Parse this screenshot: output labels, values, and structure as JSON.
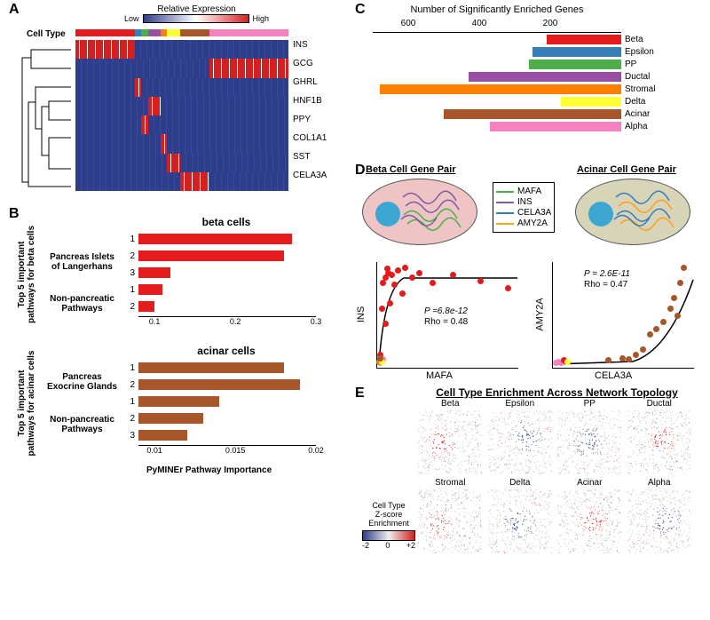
{
  "cellTypeColors": {
    "Beta": "#e41a1c",
    "Epsilon": "#377eb8",
    "PP": "#4daf4a",
    "Ductal": "#984ea3",
    "Stromal": "#ff7f00",
    "Delta": "#ffff33",
    "Acinar": "#a65628",
    "Alpha": "#f781bf"
  },
  "panelA": {
    "label": "A",
    "legendTitle": "Relative Expression",
    "legendLow": "Low",
    "legendHigh": "High",
    "cellTypeLabel": "Cell Type",
    "cellTypeBar": [
      {
        "color": "#e41a1c",
        "w": 0.28
      },
      {
        "color": "#377eb8",
        "w": 0.03
      },
      {
        "color": "#4daf4a",
        "w": 0.03
      },
      {
        "color": "#984ea3",
        "w": 0.06
      },
      {
        "color": "#ff7f00",
        "w": 0.03
      },
      {
        "color": "#ffff33",
        "w": 0.06
      },
      {
        "color": "#a65628",
        "w": 0.14
      },
      {
        "color": "#f781bf",
        "w": 0.37
      }
    ],
    "genes": [
      "INS",
      "GCG",
      "GHRL",
      "HNF1B",
      "PPY",
      "COL1A1",
      "SST",
      "CELA3A"
    ],
    "heatmapRows": [
      {
        "gene": "INS",
        "highStart": 0.0,
        "highEnd": 0.28
      },
      {
        "gene": "GCG",
        "highStart": 0.63,
        "highEnd": 1.0
      },
      {
        "gene": "GHRL",
        "highStart": 0.28,
        "highEnd": 0.31
      },
      {
        "gene": "HNF1B",
        "highStart": 0.34,
        "highEnd": 0.4
      },
      {
        "gene": "PPY",
        "highStart": 0.31,
        "highEnd": 0.34
      },
      {
        "gene": "COL1A1",
        "highStart": 0.4,
        "highEnd": 0.43
      },
      {
        "gene": "SST",
        "highStart": 0.43,
        "highEnd": 0.49
      },
      {
        "gene": "CELA3A",
        "highStart": 0.49,
        "highEnd": 0.63
      }
    ]
  },
  "panelB": {
    "label": "B",
    "charts": [
      {
        "title": "beta cells",
        "color": "#e41a1c",
        "ylabel": "Top 5 important\npathways for beta cells",
        "sections": [
          {
            "label": "Pancreas Islets of Langerhans",
            "bars": [
              0.27,
              0.26,
              0.12
            ]
          },
          {
            "label": "Non-pancreatic Pathways",
            "bars": [
              0.11,
              0.1
            ]
          }
        ],
        "xticks": [
          0.1,
          0.2,
          0.3
        ],
        "xlim": [
          0.08,
          0.3
        ]
      },
      {
        "title": "acinar cells",
        "color": "#a65628",
        "ylabel": "Top 5 important\npathways for acinar cells",
        "sections": [
          {
            "label": "Pancreas Exocrine Glands",
            "bars": [
              0.018,
              0.019
            ]
          },
          {
            "label": "Non-pancreatic Pathways",
            "bars": [
              0.014,
              0.013,
              0.012
            ]
          }
        ],
        "xticks": [
          0.01,
          0.015,
          0.02
        ],
        "xlim": [
          0.009,
          0.02
        ]
      }
    ],
    "xlabel": "PyMINEr Pathway Importance"
  },
  "panelC": {
    "label": "C",
    "axisTitle": "Number of Significantly Enriched Genes",
    "ticks": [
      600,
      400,
      200
    ],
    "max": 700,
    "bars": [
      {
        "name": "Beta",
        "value": 210,
        "color": "#e41a1c"
      },
      {
        "name": "Epsilon",
        "value": 250,
        "color": "#377eb8"
      },
      {
        "name": "PP",
        "value": 260,
        "color": "#4daf4a"
      },
      {
        "name": "Ductal",
        "value": 430,
        "color": "#984ea3"
      },
      {
        "name": "Stromal",
        "value": 680,
        "color": "#ff7f00"
      },
      {
        "name": "Delta",
        "value": 170,
        "color": "#ffff33"
      },
      {
        "name": "Acinar",
        "value": 500,
        "color": "#a65628"
      },
      {
        "name": "Alpha",
        "value": 370,
        "color": "#f781bf"
      }
    ]
  },
  "panelD": {
    "label": "D",
    "leftTitle": "Beta Cell Gene Pair",
    "rightTitle": "Acinar Cell Gene Pair",
    "betaOvalColor": "#eec4c4",
    "acinarOvalColor": "#d8d4b8",
    "geneLegend": [
      {
        "name": "MAFA",
        "color": "#4daf4a"
      },
      {
        "name": "INS",
        "color": "#7d5ba6"
      },
      {
        "name": "CELA3A",
        "color": "#377eb8"
      },
      {
        "name": "AMY2A",
        "color": "#ff9f1c"
      }
    ],
    "leftScatter": {
      "xlabel": "MAFA",
      "ylabel": "INS",
      "pText": "P =6.8e-12",
      "rhoText": "Rho = 0.48",
      "points": [
        {
          "x": 0.02,
          "y": 0.1,
          "c": "#e41a1c"
        },
        {
          "x": 0.03,
          "y": 0.55,
          "c": "#e41a1c"
        },
        {
          "x": 0.04,
          "y": 0.8,
          "c": "#e41a1c"
        },
        {
          "x": 0.06,
          "y": 0.85,
          "c": "#e41a1c"
        },
        {
          "x": 0.08,
          "y": 0.9,
          "c": "#e41a1c"
        },
        {
          "x": 0.1,
          "y": 0.88,
          "c": "#e41a1c"
        },
        {
          "x": 0.12,
          "y": 0.78,
          "c": "#e41a1c"
        },
        {
          "x": 0.15,
          "y": 0.92,
          "c": "#e41a1c"
        },
        {
          "x": 0.18,
          "y": 0.7,
          "c": "#e41a1c"
        },
        {
          "x": 0.2,
          "y": 0.95,
          "c": "#e41a1c"
        },
        {
          "x": 0.25,
          "y": 0.85,
          "c": "#e41a1c"
        },
        {
          "x": 0.3,
          "y": 0.9,
          "c": "#e41a1c"
        },
        {
          "x": 0.4,
          "y": 0.8,
          "c": "#e41a1c"
        },
        {
          "x": 0.55,
          "y": 0.88,
          "c": "#e41a1c"
        },
        {
          "x": 0.75,
          "y": 0.82,
          "c": "#e41a1c"
        },
        {
          "x": 0.95,
          "y": 0.75,
          "c": "#e41a1c"
        },
        {
          "x": 0.02,
          "y": 0.02,
          "c": "#f781bf"
        },
        {
          "x": 0.04,
          "y": 0.05,
          "c": "#f781bf"
        },
        {
          "x": 0.01,
          "y": 0.03,
          "c": "#ff7f00"
        },
        {
          "x": 0.03,
          "y": 0.03,
          "c": "#ffff33"
        },
        {
          "x": 0.02,
          "y": 0.06,
          "c": "#a65628"
        },
        {
          "x": 0.06,
          "y": 0.4,
          "c": "#e41a1c"
        },
        {
          "x": 0.07,
          "y": 0.94,
          "c": "#e41a1c"
        },
        {
          "x": 0.09,
          "y": 0.6,
          "c": "#e41a1c"
        }
      ]
    },
    "rightScatter": {
      "xlabel": "CELA3A",
      "ylabel": "AMY2A",
      "pText": "P = 2.6E-11",
      "rhoText": "Rho = 0.47",
      "points": [
        {
          "x": 0.02,
          "y": 0.02,
          "c": "#f781bf"
        },
        {
          "x": 0.04,
          "y": 0.03,
          "c": "#f781bf"
        },
        {
          "x": 0.06,
          "y": 0.02,
          "c": "#f781bf"
        },
        {
          "x": 0.08,
          "y": 0.04,
          "c": "#e41a1c"
        },
        {
          "x": 0.1,
          "y": 0.03,
          "c": "#ffff33"
        },
        {
          "x": 0.4,
          "y": 0.04,
          "c": "#a65628"
        },
        {
          "x": 0.5,
          "y": 0.06,
          "c": "#a65628"
        },
        {
          "x": 0.55,
          "y": 0.05,
          "c": "#a65628"
        },
        {
          "x": 0.6,
          "y": 0.1,
          "c": "#a65628"
        },
        {
          "x": 0.65,
          "y": 0.15,
          "c": "#a65628"
        },
        {
          "x": 0.7,
          "y": 0.3,
          "c": "#a65628"
        },
        {
          "x": 0.75,
          "y": 0.35,
          "c": "#a65628"
        },
        {
          "x": 0.8,
          "y": 0.42,
          "c": "#a65628"
        },
        {
          "x": 0.85,
          "y": 0.55,
          "c": "#a65628"
        },
        {
          "x": 0.88,
          "y": 0.65,
          "c": "#a65628"
        },
        {
          "x": 0.92,
          "y": 0.8,
          "c": "#a65628"
        },
        {
          "x": 0.95,
          "y": 0.95,
          "c": "#a65628"
        },
        {
          "x": 0.9,
          "y": 0.48,
          "c": "#a65628"
        }
      ]
    }
  },
  "panelE": {
    "label": "E",
    "title": "Cell Type Enrichment Across Network Topology",
    "cellTypes": [
      "Beta",
      "Epsilon",
      "PP",
      "Ductal",
      "Stromal",
      "Delta",
      "Acinar",
      "Alpha"
    ],
    "zscoreTitle": "Cell Type\nZ-score\nEnrichment",
    "zscoreTicks": [
      "-2",
      "0",
      "+2"
    ]
  }
}
